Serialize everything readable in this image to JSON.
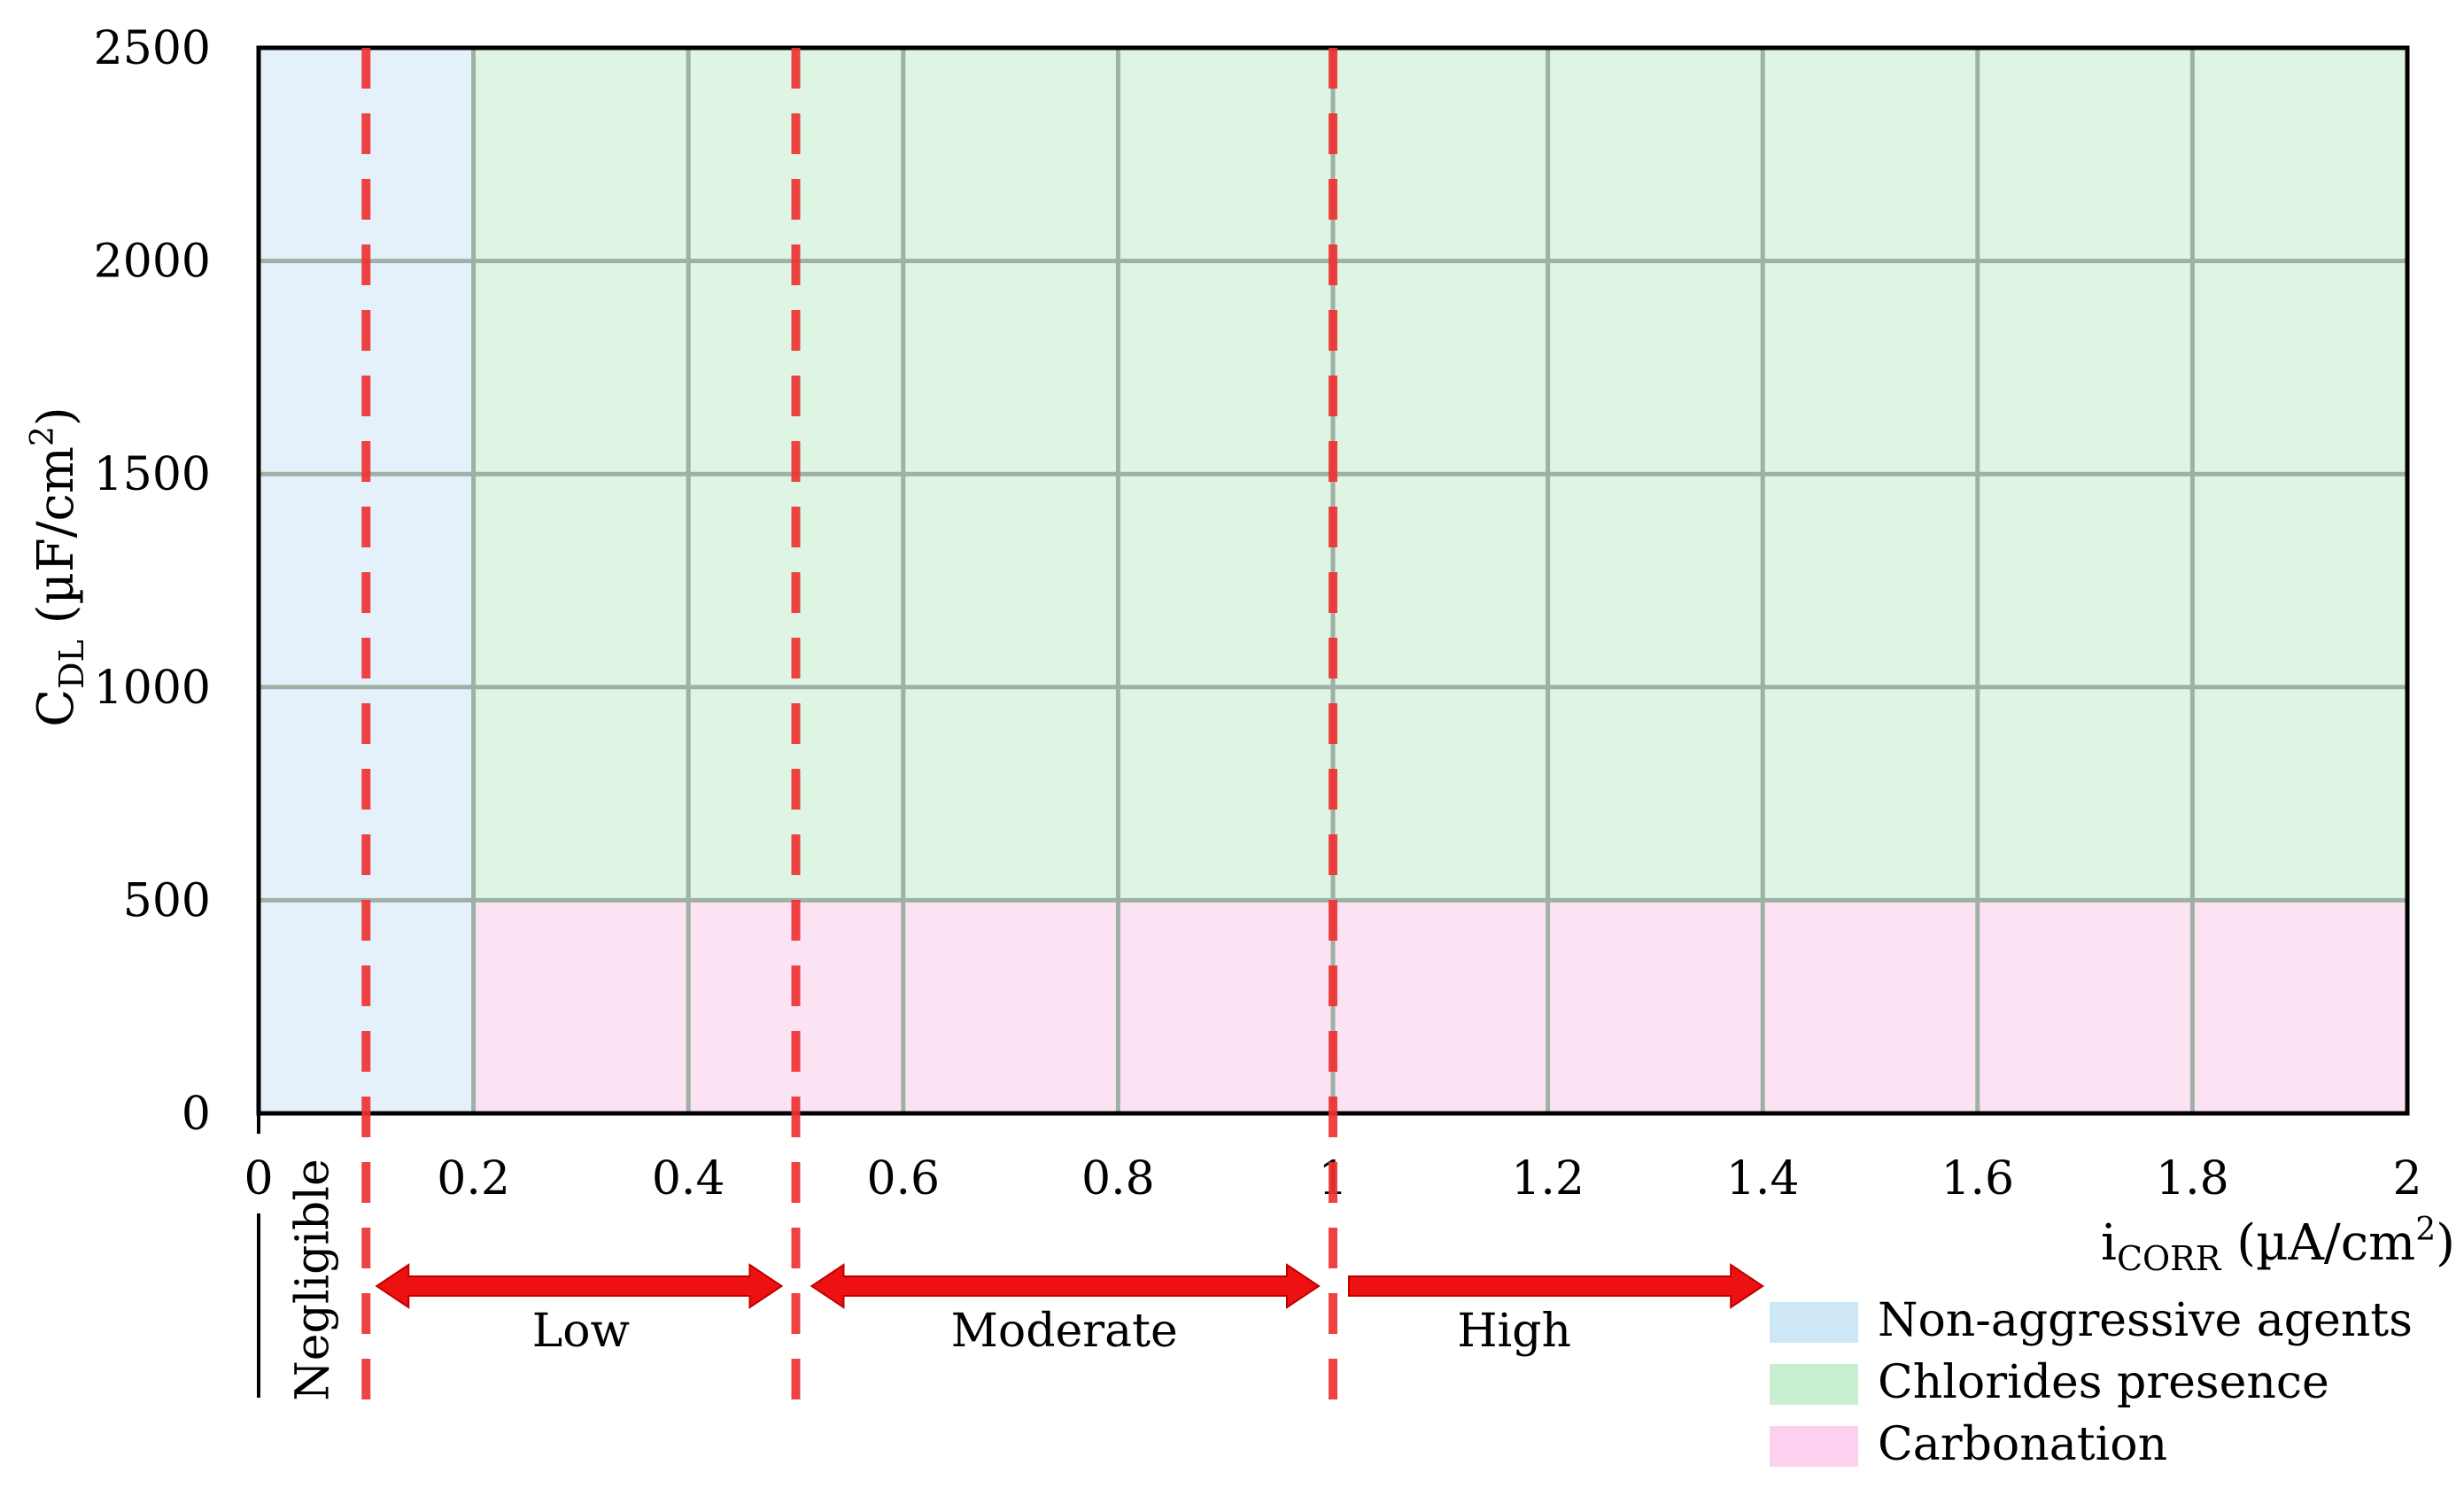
{
  "chart_data": {
    "type": "area",
    "x_axis": {
      "label_main": "i",
      "label_sub": "CORR",
      "label_unit": "(µA/cm",
      "label_sup": "2",
      "label_close": ")",
      "range": [
        0,
        2
      ],
      "ticks": [
        "0",
        "0.2",
        "0.4",
        "0.6",
        "0.8",
        "1",
        "1.2",
        "1.4",
        "1.6",
        "1.8",
        "2"
      ],
      "tick_values": [
        0,
        0.2,
        0.4,
        0.6,
        0.8,
        1,
        1.2,
        1.4,
        1.6,
        1.8,
        2
      ]
    },
    "y_axis": {
      "label_main": "C",
      "label_sub": "DL",
      "label_unit": "(µF/cm",
      "label_sup": "2",
      "label_close": ")",
      "range": [
        0,
        2500
      ],
      "ticks": [
        "0",
        "500",
        "1000",
        "1500",
        "2000",
        "2500"
      ],
      "tick_values": [
        0,
        500,
        1000,
        1500,
        2000,
        2500
      ]
    },
    "grid": true,
    "regions": [
      {
        "name": "Non-aggressive agents",
        "x": [
          0,
          0.2
        ],
        "y": [
          0,
          2500
        ],
        "color": "#e4f1fb"
      },
      {
        "name": "Chlorides presence",
        "x": [
          0.2,
          2
        ],
        "y": [
          500,
          2500
        ],
        "color": "#dff5e3"
      },
      {
        "name": "Carbonation",
        "x": [
          0.2,
          2
        ],
        "y": [
          0,
          500
        ],
        "color": "#fce3f4"
      }
    ],
    "thresholds": [
      {
        "x": 0.1,
        "color": "#ee3333"
      },
      {
        "x": 0.5,
        "color": "#ee3333"
      },
      {
        "x": 1.0,
        "color": "#ee3333"
      }
    ],
    "rate_bands": [
      {
        "label": "Negligible",
        "x": [
          0,
          0.1
        ],
        "arrow": false
      },
      {
        "label": "Low",
        "x": [
          0.1,
          0.5
        ],
        "arrow": true
      },
      {
        "label": "Moderate",
        "x": [
          0.5,
          1.0
        ],
        "arrow": true
      },
      {
        "label": "High",
        "x": [
          1.0,
          1.4
        ],
        "arrow": true
      }
    ],
    "legend": {
      "placement": "bottom-right",
      "entries": [
        {
          "label": "Non-aggressive agents",
          "color": "#cde7f7"
        },
        {
          "label": "Chlorides presence",
          "color": "#c9efd1"
        },
        {
          "label": "Carbonation",
          "color": "#fcd0ee"
        }
      ]
    },
    "colors": {
      "gridline": "#9fb0a4",
      "frame": "#000000",
      "threshold": "#ee3333",
      "arrow": "#ee1111"
    }
  }
}
